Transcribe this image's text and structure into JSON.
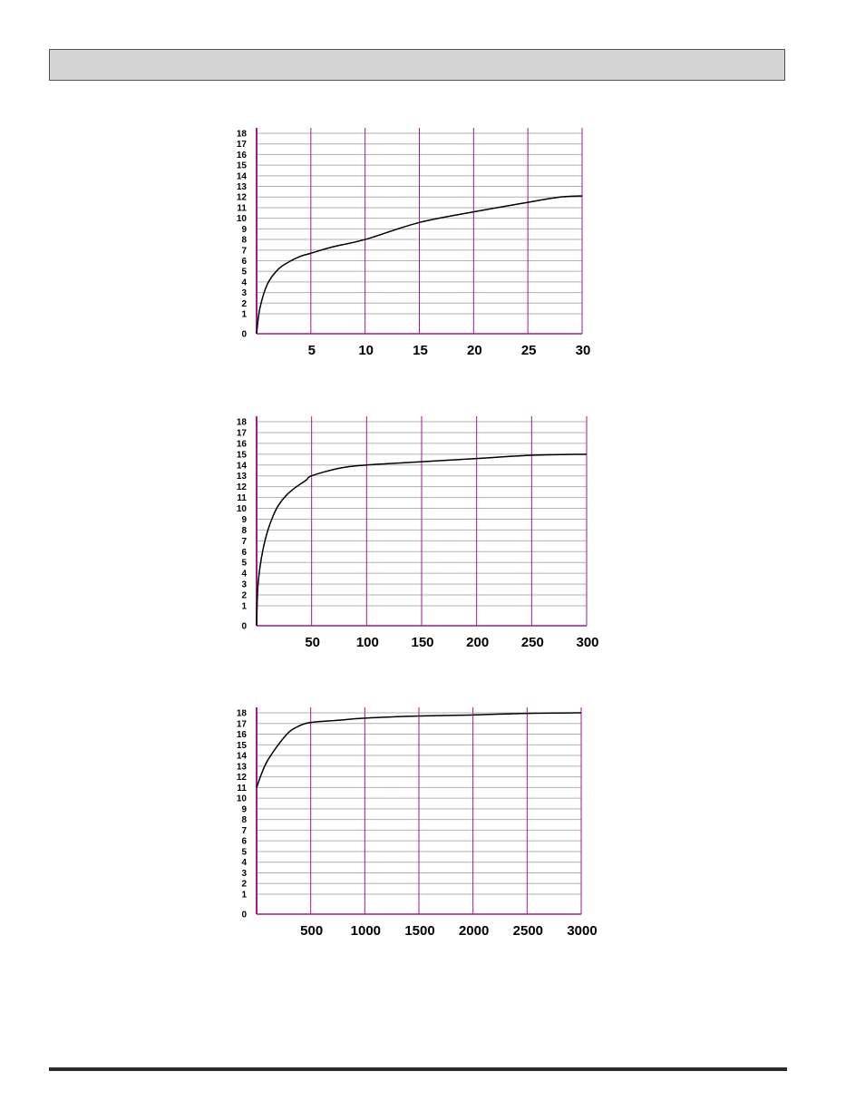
{
  "header": {},
  "colors": {
    "header_fill": "#d4d4d4",
    "vertical_gridline": "#9b1d8f",
    "horizontal_gridline": "#b0b0b0",
    "curve": "#000000",
    "footer_rule": "#2a2a2a"
  },
  "chart_data": [
    {
      "type": "line",
      "xlim": [
        0,
        30
      ],
      "ylim": [
        0,
        18
      ],
      "x_ticks": [
        "5",
        "10",
        "15",
        "20",
        "25",
        "30"
      ],
      "y_ticks": [
        "0",
        "1",
        "2",
        "3",
        "4",
        "5",
        "6",
        "7",
        "8",
        "9",
        "10",
        "11",
        "12",
        "13",
        "14",
        "15",
        "16",
        "17",
        "18"
      ],
      "grid": true,
      "series": [
        {
          "x": [
            0,
            0.3,
            1,
            2,
            3,
            4,
            5,
            7,
            10,
            15,
            20,
            25,
            28,
            30
          ],
          "y": [
            0,
            1.5,
            3.8,
            5.2,
            5.9,
            6.4,
            6.7,
            7.3,
            8.0,
            9.6,
            10.6,
            11.5,
            12.0,
            12.1
          ]
        }
      ]
    },
    {
      "type": "line",
      "xlim": [
        0,
        300
      ],
      "ylim": [
        0,
        18
      ],
      "x_ticks": [
        "50",
        "100",
        "150",
        "200",
        "250",
        "300"
      ],
      "y_ticks": [
        "0",
        "1",
        "2",
        "3",
        "4",
        "5",
        "6",
        "7",
        "8",
        "9",
        "10",
        "11",
        "12",
        "13",
        "14",
        "15",
        "16",
        "17",
        "18"
      ],
      "grid": true,
      "series": [
        {
          "x": [
            0,
            1,
            3,
            6,
            10,
            15,
            20,
            27,
            35,
            45,
            50,
            75,
            100,
            150,
            200,
            250,
            300
          ],
          "y": [
            0,
            2.5,
            4.5,
            6.3,
            7.9,
            9.3,
            10.3,
            11.2,
            11.9,
            12.6,
            13.0,
            13.7,
            14.0,
            14.3,
            14.6,
            14.9,
            15.0
          ]
        }
      ]
    },
    {
      "type": "line",
      "xlim": [
        0,
        3000
      ],
      "ylim": [
        0,
        18
      ],
      "x_ticks": [
        "500",
        "1000",
        "1500",
        "2000",
        "2500",
        "3000"
      ],
      "y_ticks": [
        "0",
        "1",
        "2",
        "3",
        "4",
        "5",
        "6",
        "7",
        "8",
        "9",
        "10",
        "11",
        "12",
        "13",
        "14",
        "15",
        "16",
        "17",
        "18"
      ],
      "grid": true,
      "series": [
        {
          "x": [
            0,
            50,
            100,
            200,
            300,
            400,
            500,
            750,
            1000,
            1500,
            2000,
            2500,
            3000
          ],
          "y": [
            11.0,
            12.4,
            13.5,
            15.0,
            16.2,
            16.8,
            17.1,
            17.3,
            17.5,
            17.7,
            17.8,
            17.95,
            18.0
          ]
        }
      ]
    }
  ]
}
